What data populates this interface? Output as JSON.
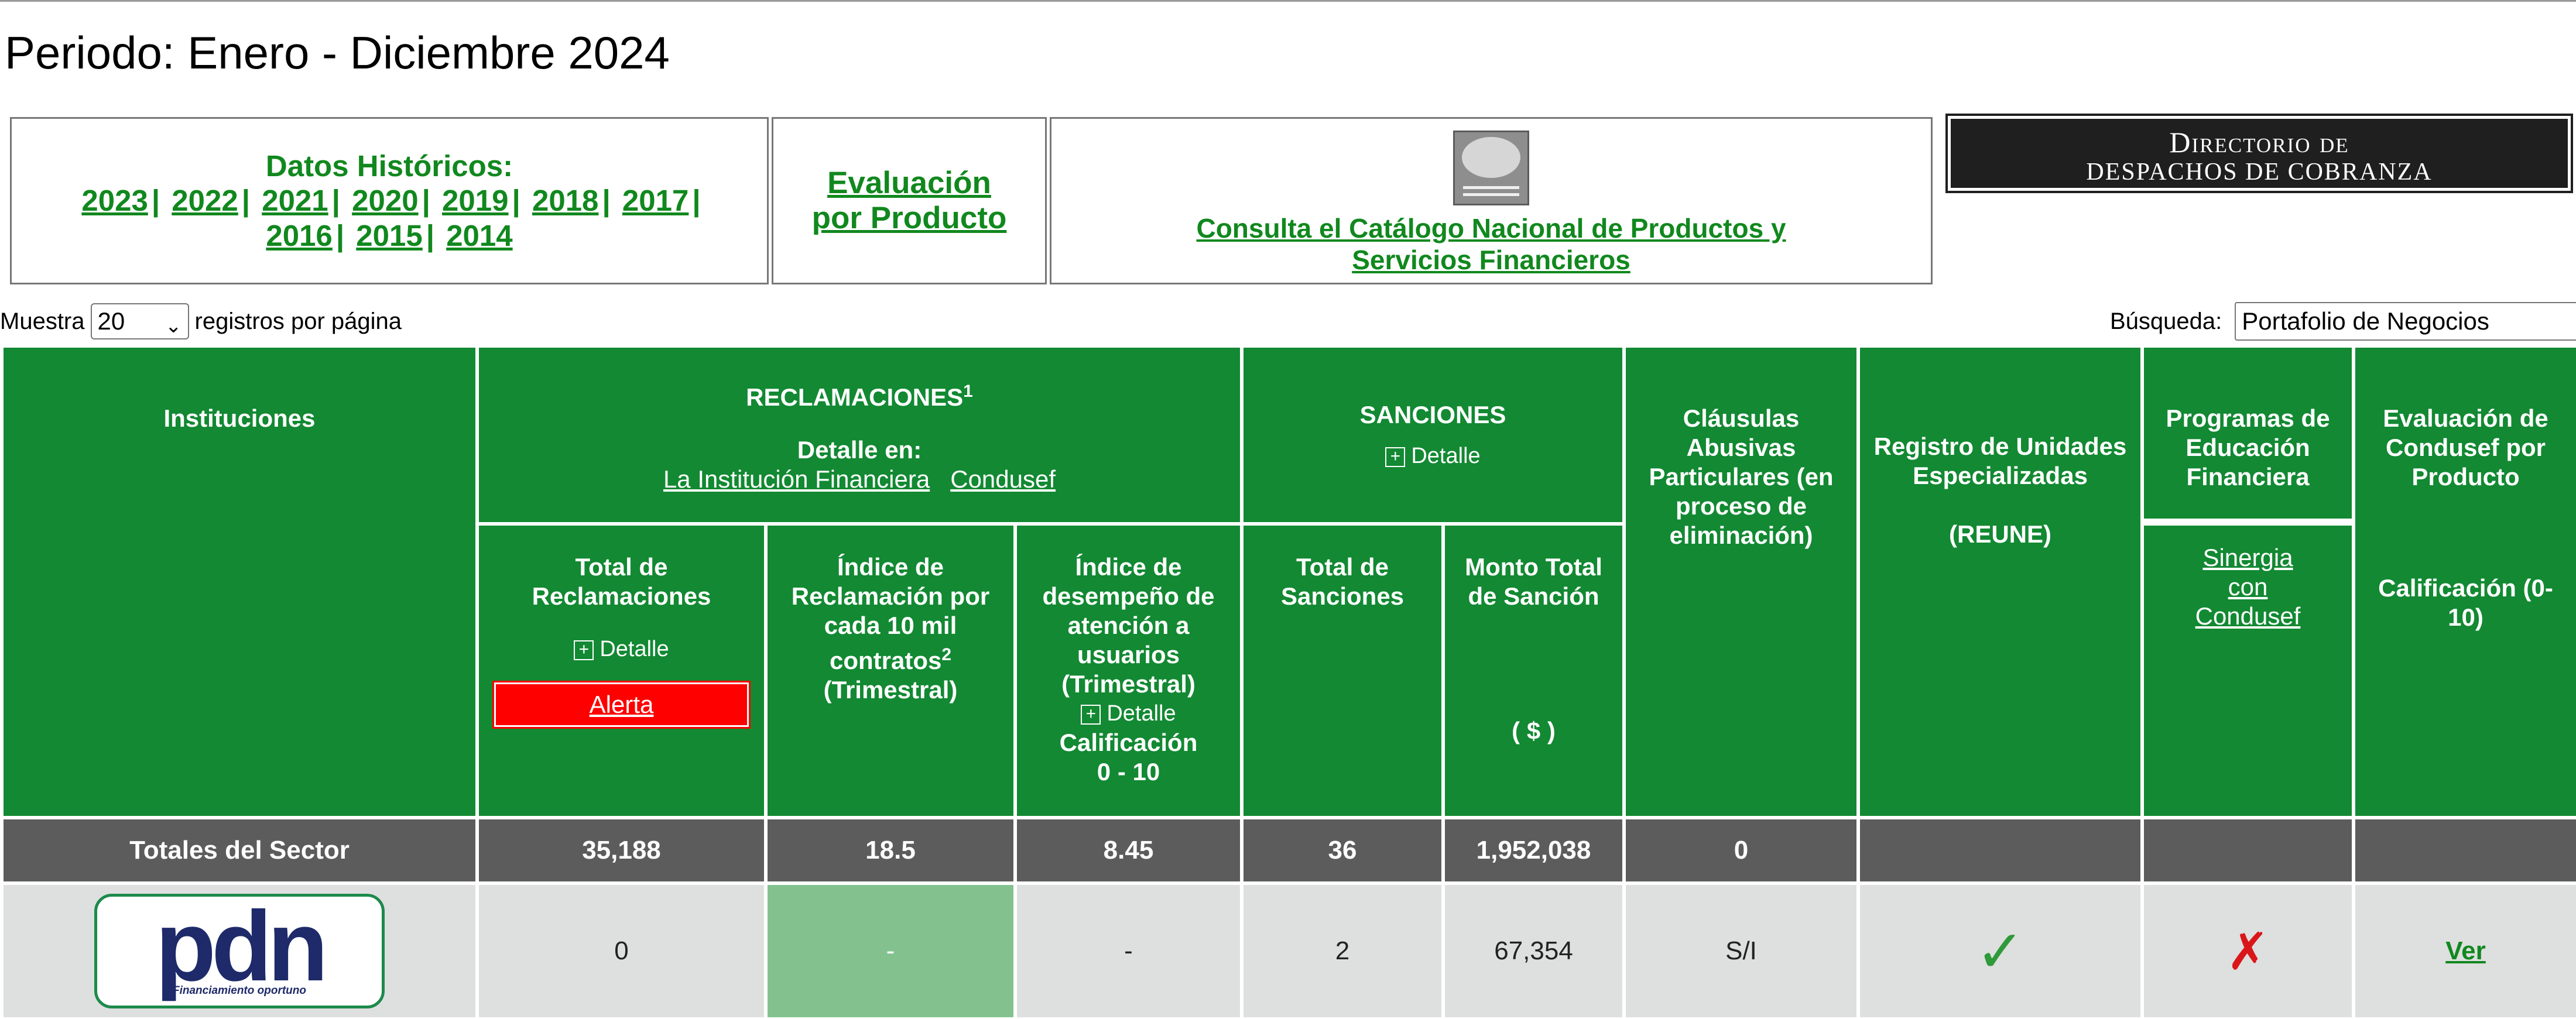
{
  "periodo": "Periodo: Enero - Diciembre 2024",
  "historicos": {
    "title": "Datos Históricos:",
    "years": [
      "2023",
      "2022",
      "2021",
      "2020",
      "2019",
      "2018",
      "2017",
      "2016",
      "2015",
      "2014"
    ]
  },
  "evaluacion": {
    "line1": "Evaluación",
    "line2": "por Producto"
  },
  "catalogo": {
    "link": "Consulta el Catálogo Nacional de Productos y Servicios Financieros"
  },
  "directorio": {
    "line1": "Directorio de",
    "line2": "despachos de cobranza"
  },
  "muestra": {
    "before": "Muestra",
    "value": "20",
    "after": "registros por página"
  },
  "busqueda": {
    "label": "Búsqueda:",
    "value": "Portafolio de Negocios"
  },
  "table": {
    "instituciones": "Instituciones",
    "reclamaciones": "RECLAMACIONES",
    "reclamaciones_sup": "1",
    "detalle_en": "Detalle en:",
    "link_institucion": "La Institución Financiera",
    "link_condusef": "Condusef",
    "sanciones": "SANCIONES",
    "detalle": "Detalle",
    "clausulas": "Cláusulas Abusivas Particulares (en proceso de eliminación)",
    "reune_title": "Registro de Unidades Especializadas",
    "reune": "(REUNE)",
    "programas": "Programas de Educación Financiera",
    "sinergia": [
      "Sinergia",
      "con",
      "Condusef"
    ],
    "evaluacion_condusef": "Evaluación de Condusef por Producto",
    "calificacion_0_10": "Calificación (0-10)",
    "total_reclamaciones": "Total de Reclamaciones",
    "alerta": "Alerta",
    "indice_reclamacion": "Índice de Reclamación por cada 10 mil contratos",
    "indice_reclamacion_sup": "2",
    "trimestral": "(Trimestral)",
    "indice_desempeno": "Índice de desempeño de atención a usuarios",
    "calificacion": "Calificación",
    "rango": "0 - 10",
    "total_sanciones": "Total de Sanciones",
    "monto_total": "Monto Total de Sanción",
    "moneda": "( $ )"
  },
  "totales": {
    "label": "Totales del Sector",
    "reclamaciones": "35,188",
    "indice": "18.5",
    "desempeno": "8.45",
    "sanciones": "36",
    "monto": "1,952,038",
    "clausulas": "0"
  },
  "row": {
    "logo_word": "pdn",
    "logo_sub": "Financiamiento oportuno",
    "reclamaciones": "0",
    "indice": "-",
    "desempeno": "-",
    "sanciones": "2",
    "monto": "67,354",
    "clausulas": "S/I",
    "reune_icon": "check-icon",
    "programas_icon": "cross-icon",
    "evaluacion_link": "Ver"
  },
  "colors": {
    "header_green": "#128932",
    "link_green": "#11881e",
    "totals_gray": "#5c5c5c",
    "alert_red": "#ff0000"
  }
}
